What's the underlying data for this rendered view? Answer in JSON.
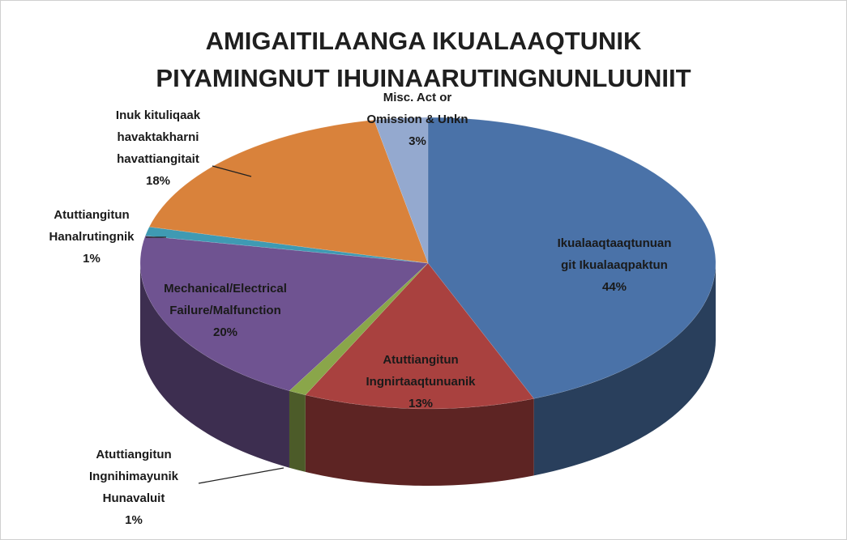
{
  "chart_data": {
    "type": "pie",
    "title": "AMIGAITILAANGA IKUALAAQTUNIK\nPIYAMINGNUT IHUINAARUTINGNUNLUUNIIT",
    "categories": [
      "Ikualaaqtaaqtunuan\ngit Ikualaaqpaktun",
      "Atuttiangitun\nIngnirtaaqtunuanik",
      "Atuttiangitun\nIngnihimayunik\nHunavaluit",
      "Mechanical/Electrical\nFailure/Malfunction",
      "Atuttiangitun\nHanalrutingnik",
      "Inuk kituliqaak\nhavaktakharni\nhavattiangitait",
      "Misc. Act or\nOmission & Unkn"
    ],
    "values": [
      44,
      13,
      1,
      20,
      1,
      18,
      3
    ],
    "value_labels": [
      "44%",
      "13%",
      "1%",
      "20%",
      "1%",
      "18%",
      "3%"
    ],
    "colors": [
      "#4a72a8",
      "#a9413f",
      "#8aa64a",
      "#6f5391",
      "#3f9ab3",
      "#d9823b",
      "#94a9cf"
    ]
  }
}
